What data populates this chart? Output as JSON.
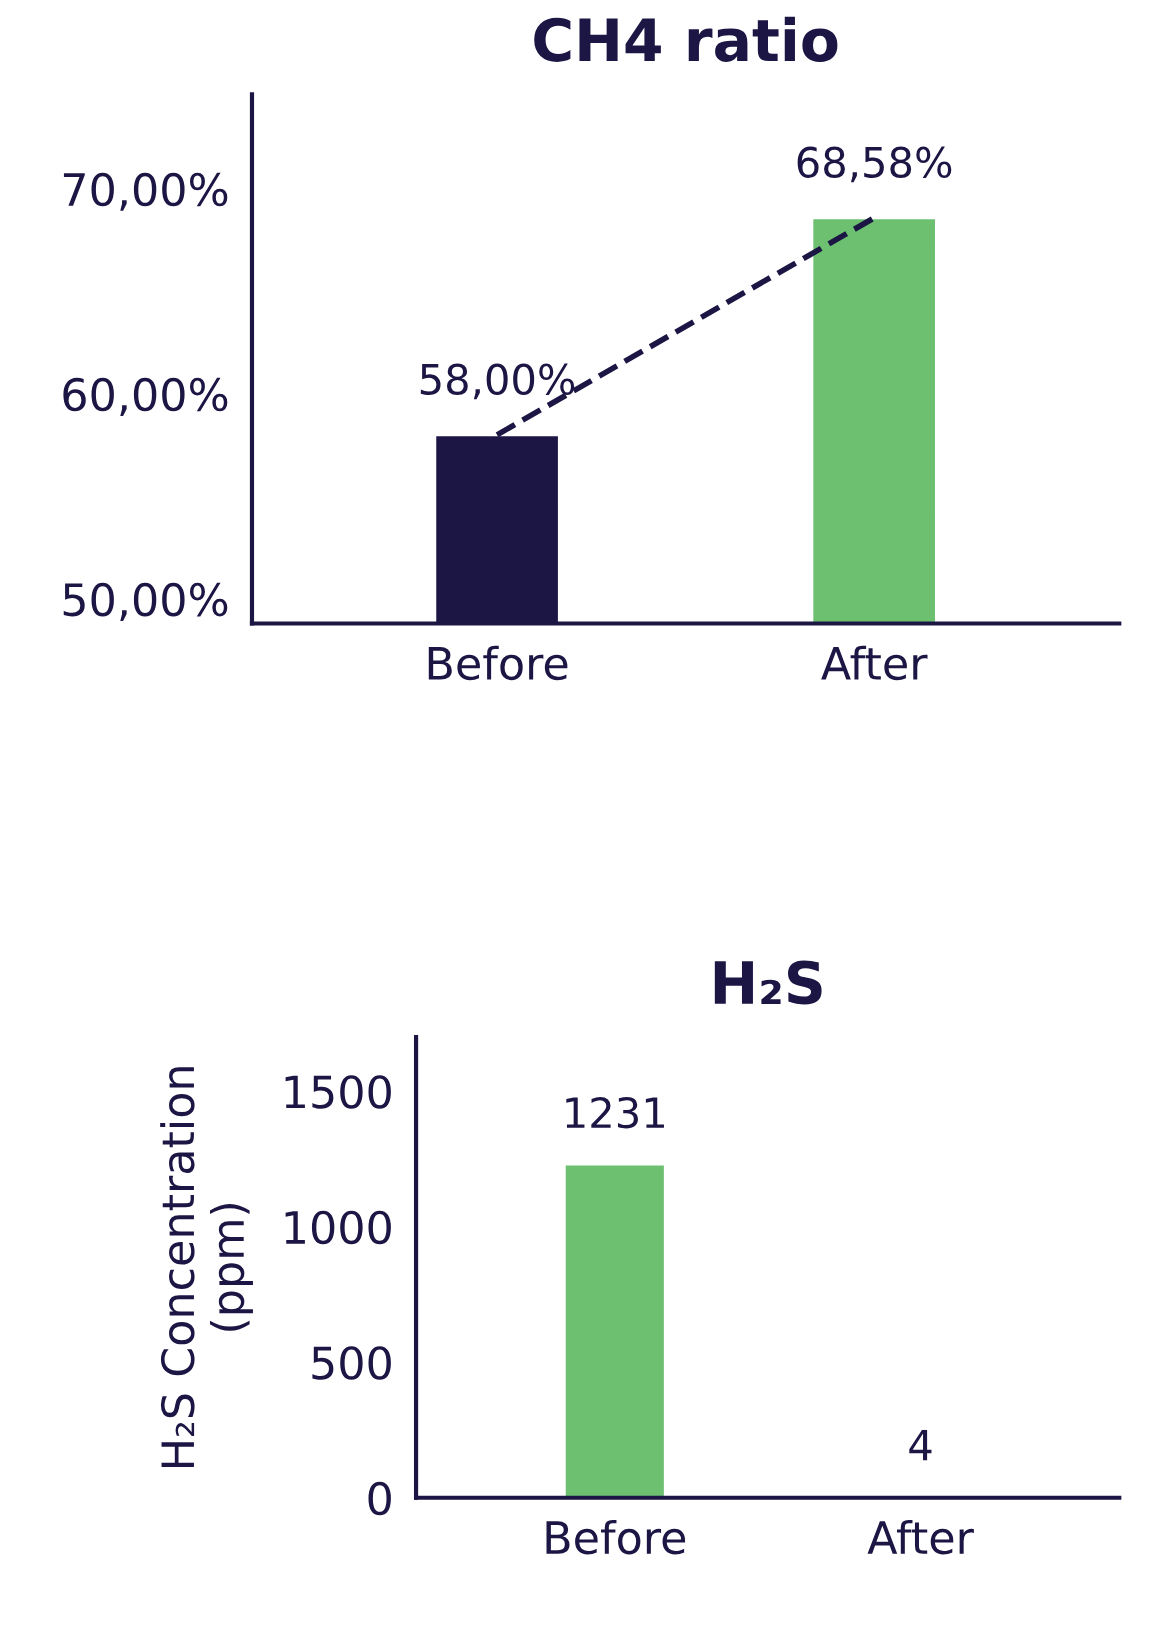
{
  "chart_data": [
    {
      "type": "bar",
      "title": "CH4 ratio",
      "categories": [
        "Before",
        "After"
      ],
      "series": [
        {
          "colors": [
            "#1c1645",
            "#6cc070"
          ],
          "values": [
            58.0,
            68.58
          ],
          "value_labels": [
            "58,00%",
            "68,58%"
          ]
        },
        {
          "type": "line",
          "color": "#1c1645",
          "values": [
            58.0,
            68.58
          ],
          "line_style": "dashed",
          "marker": "none"
        }
      ],
      "ylim": [
        48.8,
        74.6
      ],
      "yticks": [
        {
          "value": 50,
          "label": "50,00%"
        },
        {
          "value": 60,
          "label": "60,00%"
        },
        {
          "value": 70,
          "label": "70,00%"
        }
      ],
      "grid": false,
      "legend": false
    },
    {
      "type": "bar",
      "title": "H₂S",
      "ylabel": "H₂S Concentration\n(ppm)",
      "categories": [
        "Before",
        "After"
      ],
      "series": [
        {
          "color": "#6cc070",
          "values": [
            1231,
            4
          ]
        }
      ],
      "data_labels": true,
      "ylim": [
        0,
        1700
      ],
      "yticks": [
        0,
        500,
        1000,
        1500
      ],
      "grid": false,
      "legend": false
    }
  ]
}
